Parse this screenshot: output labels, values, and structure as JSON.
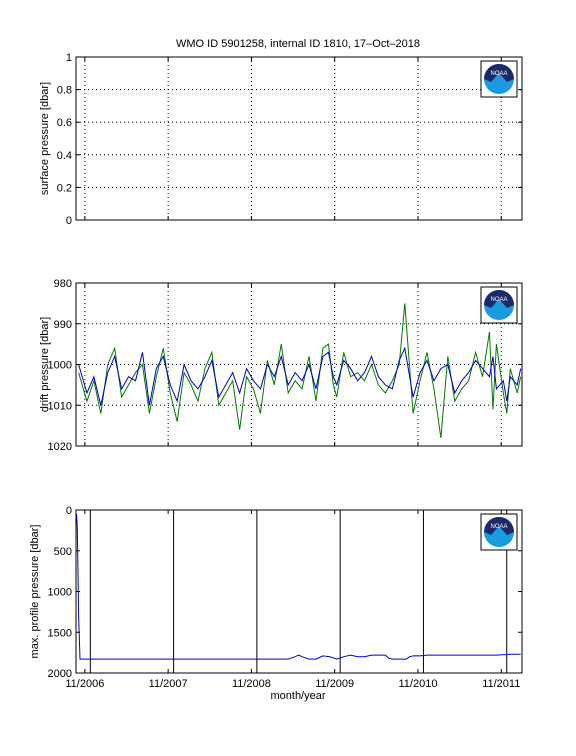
{
  "title": "WMO ID 5901258, internal ID 1810, 17–Oct–2018",
  "xlabel": "month/year",
  "x_ticks": [
    "11/2006",
    "11/2007",
    "11/2008",
    "11/2009",
    "11/2010",
    "11/2011"
  ],
  "logo_text": "NOAA",
  "colors": {
    "series_a": "#0000cc",
    "series_b": "#007a00",
    "axis": "#000000",
    "grid": "#000000"
  },
  "chart_data": [
    {
      "type": "line",
      "ylabel": "surface pressure [dbar]",
      "ylim": [
        0,
        1
      ],
      "y_ticks": [
        "0",
        "0.2",
        "0.4",
        "0.6",
        "0.8",
        "1"
      ],
      "y_reversed": false,
      "grid": true,
      "series": []
    },
    {
      "type": "line",
      "ylabel": "drift pressure [dbar]",
      "ylim": [
        980,
        1020
      ],
      "y_ticks": [
        "980",
        "990",
        "1000",
        "1010",
        "1020"
      ],
      "y_reversed": true,
      "grid": true,
      "x_months": [
        -0.2,
        1,
        2,
        3,
        4,
        5,
        6,
        7,
        8,
        9,
        10,
        11,
        12,
        13,
        14,
        15,
        16,
        17,
        18,
        19,
        20,
        21,
        22,
        23,
        24,
        25,
        26,
        27,
        28,
        29,
        30,
        31,
        32,
        33,
        34,
        35,
        35.8,
        36.5,
        37,
        38,
        39,
        40,
        41,
        42,
        43,
        44,
        45,
        46,
        46.8,
        48,
        49,
        50,
        51,
        52,
        53,
        54,
        55,
        56,
        57,
        58,
        59,
        59.5,
        60,
        61,
        61.5,
        62,
        63,
        63.5
      ],
      "series": [
        {
          "values": [
            1000,
            1007,
            1003,
            1010,
            1002,
            998,
            1006,
            1003,
            1004,
            997,
            1010,
            1001,
            998,
            1005,
            1009,
            1000,
            1004,
            1006,
            1003,
            999,
            1008,
            1005,
            1002,
            1007,
            1001,
            1004,
            1006,
            1000,
            1003,
            998,
            1005,
            1002,
            1004,
            1000,
            1006,
            998,
            997,
            1003,
            1005,
            999,
            1001,
            1004,
            1002,
            998,
            1003,
            1005,
            1006,
            999,
            996,
            1008,
            1002,
            999,
            1004,
            1001,
            1000,
            1007,
            1004,
            1002,
            999,
            1001,
            1003,
            998,
            1006,
            1004,
            1009,
            1003,
            1005,
            1001
          ]
        },
        {
          "values": [
            1002,
            1009,
            1004,
            1012,
            1000,
            996,
            1008,
            1005,
            1002,
            1000,
            1012,
            1003,
            996,
            1007,
            1014,
            1002,
            1005,
            1009,
            1001,
            997,
            1010,
            1007,
            1004,
            1016,
            1003,
            1006,
            1012,
            999,
            1005,
            995,
            1007,
            1004,
            1006,
            998,
            1009,
            996,
            995,
            1005,
            1008,
            997,
            1003,
            1002,
            1004,
            1000,
            1005,
            1007,
            1004,
            1000,
            985,
            1012,
            1004,
            997,
            1006,
            1018,
            998,
            1009,
            1006,
            1004,
            997,
            1003,
            992,
            1011,
            995,
            1007,
            1012,
            1001,
            1007,
            1003
          ]
        }
      ]
    },
    {
      "type": "line",
      "ylabel": "max. profile pressure [dbar]",
      "ylim": [
        0,
        2000
      ],
      "y_ticks": [
        "0",
        "500",
        "1000",
        "1500",
        "2000"
      ],
      "y_reversed": true,
      "grid": false,
      "vertical_markers_months": [
        1.2,
        13.2,
        25.2,
        37.2,
        49.2,
        61.2
      ],
      "series": [
        {
          "x_months": [
            -0.5,
            -0.4,
            -0.3,
            -0.2,
            0,
            5,
            10,
            15,
            20,
            25,
            30,
            31,
            31.5,
            32,
            33,
            34,
            34.5,
            35,
            36,
            37,
            38,
            39,
            40,
            41,
            42,
            43,
            44,
            44.5,
            45,
            46,
            47,
            47.5,
            48,
            49,
            50,
            55,
            60,
            62,
            63.5
          ],
          "values": [
            50,
            200,
            700,
            1300,
            1830,
            1830,
            1830,
            1830,
            1830,
            1830,
            1830,
            1800,
            1780,
            1800,
            1830,
            1830,
            1810,
            1790,
            1800,
            1830,
            1800,
            1780,
            1800,
            1800,
            1780,
            1780,
            1780,
            1820,
            1830,
            1830,
            1830,
            1800,
            1790,
            1790,
            1780,
            1780,
            1780,
            1770,
            1770
          ]
        }
      ]
    }
  ]
}
